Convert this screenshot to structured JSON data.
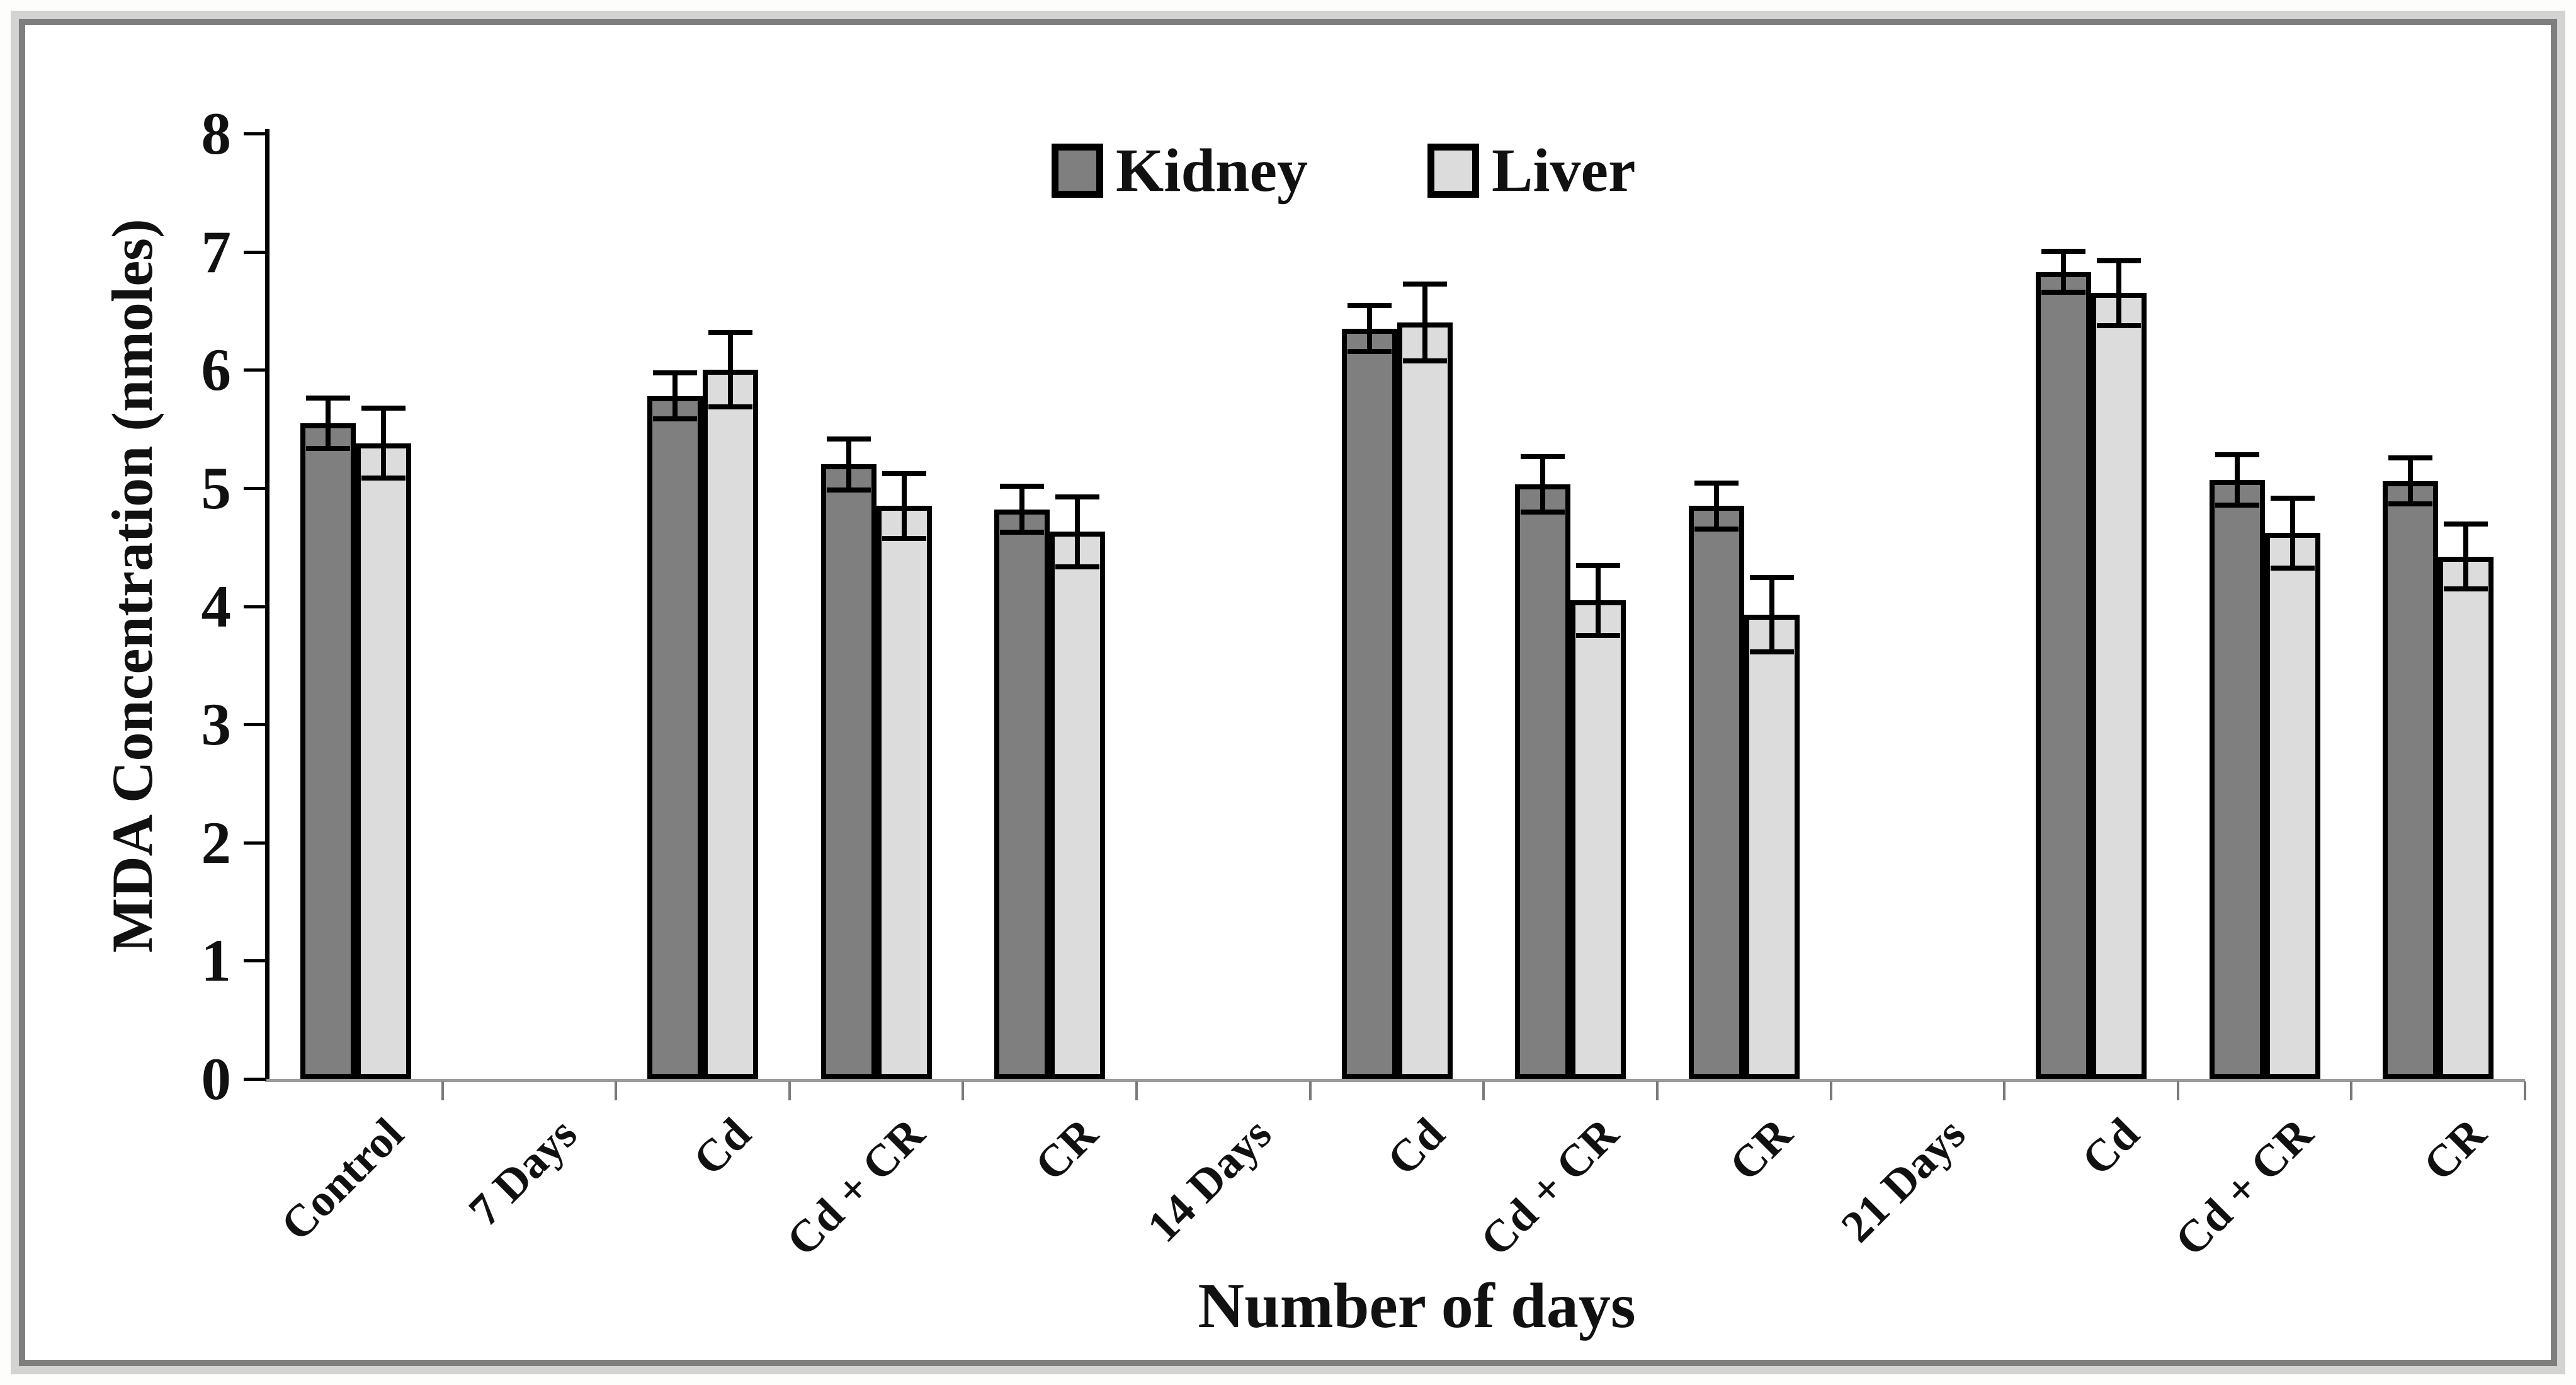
{
  "figure": {
    "background": "#ffffff",
    "frame_outer_color": "#d3d3d1",
    "frame_inner_color": "#7e7e7e"
  },
  "chart_data": {
    "type": "bar",
    "title": "",
    "xlabel": "Number of days",
    "ylabel": "MDA Concentration (nmoles)",
    "ylim": [
      0,
      8
    ],
    "yticks": [
      0,
      1,
      2,
      3,
      4,
      5,
      6,
      7,
      8
    ],
    "grid": false,
    "legend_position": "top-center",
    "bar_border_color": "#000000",
    "error_bar_color": "#000000",
    "axis_line_color": "#000000",
    "baseline_color": "#9b9b9b",
    "categories": [
      "Control",
      "7 Days",
      "Cd",
      "Cd + CR",
      "CR",
      "14 Days",
      "Cd",
      "Cd + CR",
      "CR",
      "21 Days",
      "Cd",
      "Cd + CR",
      "CR"
    ],
    "series": [
      {
        "name": "Kidney",
        "color": "#7f7f7f",
        "values": [
          5.55,
          null,
          5.78,
          5.2,
          4.82,
          null,
          6.35,
          5.03,
          4.85,
          null,
          6.83,
          5.07,
          5.06
        ],
        "errors": [
          0.22,
          null,
          0.2,
          0.22,
          0.2,
          null,
          0.2,
          0.24,
          0.2,
          null,
          0.18,
          0.22,
          0.2
        ]
      },
      {
        "name": "Liver",
        "color": "#dcdcdc",
        "values": [
          5.38,
          null,
          6.0,
          4.85,
          4.63,
          null,
          6.4,
          4.05,
          3.93,
          null,
          6.65,
          4.62,
          4.42
        ],
        "errors": [
          0.3,
          null,
          0.32,
          0.28,
          0.3,
          null,
          0.33,
          0.3,
          0.32,
          null,
          0.28,
          0.3,
          0.28
        ]
      }
    ]
  }
}
